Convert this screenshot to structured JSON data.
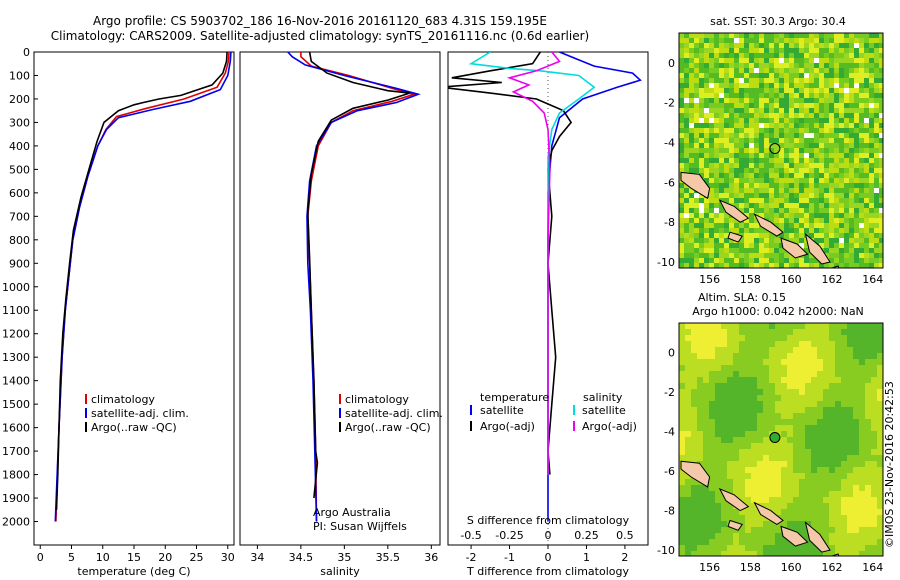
{
  "header": {
    "line1": "Argo profile: CS 5903702_186 16-Nov-2016 20161120_683 4.31S 159.195E",
    "line2": "Climatology: CARS2009. Satellite-adjusted climatology: synTS_20161116.nc (0.6d earlier)"
  },
  "side_stamp": "©IMOS 23-Nov-2016 20:42:53",
  "colors": {
    "climatology": "#dd0000",
    "satellite": "#0000ee",
    "argo": "#000000",
    "sat_salinity": "#00dddd",
    "argo_salinity": "#ee00ee",
    "land": "#f4c8a8"
  },
  "chart_data": [
    {
      "id": "temperature",
      "type": "line",
      "xlabel": "temperature (deg C)",
      "xlim": [
        -1,
        31
      ],
      "ylim": [
        2100,
        0
      ],
      "y_reversed": true,
      "xticks": [
        "0",
        "5",
        "10",
        "15",
        "20",
        "25",
        "30"
      ],
      "yticks": [
        "0",
        "100",
        "200",
        "300",
        "400",
        "500",
        "600",
        "700",
        "800",
        "900",
        "1000",
        "1100",
        "1200",
        "1300",
        "1400",
        "1500",
        "1600",
        "1700",
        "1800",
        "1900",
        "2000"
      ],
      "legend": [
        "climatology",
        "satellite-adj. clim.",
        "Argo(..raw -QC)"
      ],
      "series": [
        {
          "name": "climatology",
          "color": "#dd0000",
          "points": [
            [
              30.2,
              0
            ],
            [
              30.1,
              40
            ],
            [
              29.6,
              90
            ],
            [
              28.3,
              150
            ],
            [
              23,
              200
            ],
            [
              17,
              240
            ],
            [
              12.2,
              275
            ],
            [
              10.5,
              330
            ],
            [
              9.2,
              400
            ],
            [
              7.6,
              530
            ],
            [
              6.3,
              660
            ],
            [
              5.2,
              800
            ],
            [
              4.6,
              950
            ],
            [
              4,
              1100
            ],
            [
              3.5,
              1300
            ],
            [
              3,
              1600
            ],
            [
              2.5,
              2000
            ]
          ]
        },
        {
          "name": "satellite-adj. clim.",
          "color": "#0000ee",
          "points": [
            [
              30.5,
              0
            ],
            [
              30.4,
              40
            ],
            [
              30,
              100
            ],
            [
              28.8,
              160
            ],
            [
              24,
              210
            ],
            [
              18,
              245
            ],
            [
              12.5,
              280
            ],
            [
              10.6,
              330
            ],
            [
              9.2,
              400
            ],
            [
              7.6,
              530
            ],
            [
              6.3,
              660
            ],
            [
              5.2,
              800
            ],
            [
              4.6,
              950
            ],
            [
              4,
              1100
            ],
            [
              3.5,
              1300
            ],
            [
              3,
              1600
            ],
            [
              2.4,
              2000
            ]
          ]
        },
        {
          "name": "Argo(..raw -QC)",
          "color": "#000000",
          "points": [
            [
              29.9,
              0
            ],
            [
              29.8,
              40
            ],
            [
              29.2,
              90
            ],
            [
              27.5,
              140
            ],
            [
              22.5,
              185
            ],
            [
              19,
              200
            ],
            [
              16.5,
              215
            ],
            [
              15,
              225
            ],
            [
              12.5,
              250
            ],
            [
              10.2,
              300
            ],
            [
              9.1,
              380
            ],
            [
              8,
              480
            ],
            [
              6.5,
              620
            ],
            [
              5.3,
              760
            ],
            [
              4.7,
              900
            ],
            [
              4.1,
              1050
            ],
            [
              3.6,
              1200
            ],
            [
              3.2,
              1400
            ],
            [
              3,
              1600
            ],
            [
              2.8,
              1800
            ],
            [
              2.6,
              1950
            ]
          ]
        }
      ]
    },
    {
      "id": "salinity",
      "type": "line",
      "xlabel": "salinity",
      "xlim": [
        33.8,
        36.1
      ],
      "ylim": [
        2100,
        0
      ],
      "y_reversed": true,
      "xticks": [
        "34",
        "34.5",
        "35",
        "35.5",
        "36"
      ],
      "legend": [
        "climatology",
        "satellite-adj. clim.",
        "Argo(..raw -QC)"
      ],
      "annotation": [
        "Argo Australia",
        "PI: Susan Wijffels"
      ],
      "series": [
        {
          "name": "climatology",
          "color": "#dd0000",
          "points": [
            [
              34.5,
              0
            ],
            [
              34.5,
              20
            ],
            [
              34.62,
              60
            ],
            [
              35.05,
              100
            ],
            [
              35.6,
              160
            ],
            [
              35.8,
              180
            ],
            [
              35.55,
              210
            ],
            [
              35.1,
              250
            ],
            [
              34.85,
              300
            ],
            [
              34.7,
              400
            ],
            [
              34.62,
              550
            ],
            [
              34.58,
              700
            ],
            [
              34.6,
              900
            ],
            [
              34.62,
              1100
            ],
            [
              34.65,
              1400
            ],
            [
              34.67,
              1700
            ],
            [
              34.68,
              2000
            ]
          ]
        },
        {
          "name": "satellite-adj. clim.",
          "color": "#0000ee",
          "points": [
            [
              34.35,
              0
            ],
            [
              34.4,
              20
            ],
            [
              34.55,
              55
            ],
            [
              35,
              100
            ],
            [
              35.6,
              155
            ],
            [
              35.85,
              180
            ],
            [
              35.6,
              215
            ],
            [
              35.15,
              250
            ],
            [
              34.85,
              300
            ],
            [
              34.68,
              400
            ],
            [
              34.6,
              550
            ],
            [
              34.57,
              700
            ],
            [
              34.58,
              900
            ],
            [
              34.61,
              1100
            ],
            [
              34.64,
              1400
            ],
            [
              34.66,
              1700
            ],
            [
              34.68,
              2000
            ]
          ]
        },
        {
          "name": "Argo(..raw -QC)",
          "color": "#000000",
          "points": [
            [
              34.6,
              0
            ],
            [
              34.62,
              40
            ],
            [
              34.8,
              90
            ],
            [
              35.1,
              130
            ],
            [
              35.5,
              165
            ],
            [
              35.75,
              175
            ],
            [
              35.5,
              205
            ],
            [
              35.1,
              240
            ],
            [
              34.85,
              290
            ],
            [
              34.7,
              380
            ],
            [
              34.62,
              520
            ],
            [
              34.58,
              680
            ],
            [
              34.6,
              880
            ],
            [
              34.62,
              1100
            ],
            [
              34.65,
              1400
            ],
            [
              34.67,
              1700
            ],
            [
              34.69,
              1750
            ],
            [
              34.65,
              1900
            ]
          ]
        }
      ]
    },
    {
      "id": "differences",
      "type": "line",
      "xlabel": "T difference from climatology",
      "xlabel_top": "S difference from climatology",
      "xlim": [
        -2.6,
        2.6
      ],
      "ylim": [
        2100,
        0
      ],
      "y_reversed": true,
      "xticks": [
        "-2",
        "-1",
        "0",
        "1",
        "2"
      ],
      "top_xticks": [
        "-0.5",
        "-0.25",
        "0",
        "0.25",
        "0.5"
      ],
      "legend_temperature": [
        "temperature",
        "satellite",
        "Argo(-adj)"
      ],
      "legend_salinity": [
        "salinity",
        "satellite",
        "Argo(-adj)"
      ],
      "series": [
        {
          "name": "temperature satellite",
          "color": "#0000ee",
          "points": [
            [
              0.3,
              0
            ],
            [
              0.6,
              20
            ],
            [
              1.2,
              60
            ],
            [
              2.2,
              90
            ],
            [
              2.4,
              120
            ],
            [
              1.8,
              150
            ],
            [
              0.9,
              200
            ],
            [
              0.3,
              280
            ],
            [
              0.1,
              400
            ],
            [
              0,
              600
            ],
            [
              0,
              900
            ],
            [
              0,
              1200
            ],
            [
              0,
              1500
            ],
            [
              0,
              1800
            ],
            [
              0,
              2000
            ]
          ]
        },
        {
          "name": "temperature Argo(-adj)",
          "color": "#000000",
          "points": [
            [
              -0.2,
              0
            ],
            [
              -0.4,
              50
            ],
            [
              -1.5,
              80
            ],
            [
              -2.5,
              110
            ],
            [
              -1.2,
              130
            ],
            [
              -2.8,
              150
            ],
            [
              -1.5,
              175
            ],
            [
              -0.3,
              200
            ],
            [
              0.4,
              250
            ],
            [
              0.6,
              300
            ],
            [
              0.3,
              360
            ],
            [
              0.1,
              420
            ],
            [
              0,
              500
            ],
            [
              0.1,
              700
            ],
            [
              0,
              900
            ],
            [
              0.1,
              1100
            ],
            [
              0.2,
              1300
            ],
            [
              0.1,
              1500
            ],
            [
              0,
              1700
            ],
            [
              0.05,
              1800
            ]
          ]
        },
        {
          "name": "salinity satellite",
          "color": "#00dddd",
          "points": [
            [
              -1.5,
              0
            ],
            [
              -2,
              50
            ],
            [
              -1,
              70
            ],
            [
              -0.2,
              80
            ],
            [
              0.8,
              100
            ],
            [
              1.2,
              150
            ],
            [
              0.8,
              200
            ],
            [
              0.3,
              260
            ],
            [
              0.1,
              330
            ],
            [
              0,
              450
            ],
            [
              0,
              700
            ],
            [
              0,
              1000
            ],
            [
              0,
              1300
            ],
            [
              0,
              1600
            ],
            [
              0,
              1800
            ]
          ]
        },
        {
          "name": "salinity Argo(-adj)",
          "color": "#ee00ee",
          "points": [
            [
              0.1,
              0
            ],
            [
              0.3,
              40
            ],
            [
              -0.3,
              80
            ],
            [
              -1,
              110
            ],
            [
              -0.5,
              140
            ],
            [
              -0.9,
              170
            ],
            [
              -0.4,
              210
            ],
            [
              -0.1,
              260
            ],
            [
              0,
              330
            ],
            [
              0.05,
              500
            ],
            [
              0,
              800
            ],
            [
              0,
              1100
            ],
            [
              0,
              1400
            ],
            [
              0,
              1700
            ],
            [
              0,
              1800
            ]
          ]
        }
      ]
    },
    {
      "id": "sst_map",
      "type": "heatmap",
      "title": "sat. SST: 30.3 Argo: 30.4",
      "xticks": [
        "156",
        "158",
        "160",
        "162",
        "164"
      ],
      "yticks": [
        "0",
        "-2",
        "-4",
        "-6",
        "-8",
        "-10"
      ],
      "xlim": [
        154.5,
        164.5
      ],
      "ylim": [
        -10.3,
        1.5
      ],
      "marker": {
        "lon": 159.2,
        "lat": -4.3
      }
    },
    {
      "id": "sla_map",
      "type": "heatmap",
      "title1": "Altim. SLA: 0.15",
      "title2": "Argo h1000: 0.042 h2000: NaN",
      "xticks": [
        "156",
        "158",
        "160",
        "162",
        "164"
      ],
      "yticks": [
        "0",
        "-2",
        "-4",
        "-6",
        "-8",
        "-10"
      ],
      "xlim": [
        154.5,
        164.5
      ],
      "ylim": [
        -10.3,
        1.5
      ],
      "marker": {
        "lon": 159.2,
        "lat": -4.3
      }
    }
  ]
}
